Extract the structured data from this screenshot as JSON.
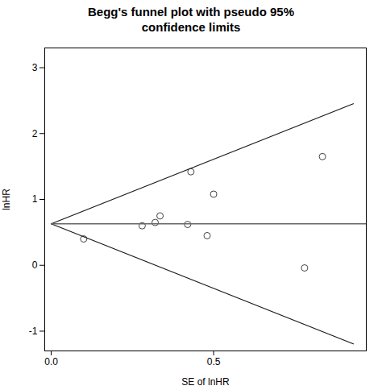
{
  "chart_data": {
    "type": "scatter",
    "title": "Begg's funnel plot with pseudo 95%\nconfidence limits",
    "x_label": "SE of lnHR",
    "y_label": "lnHR",
    "xlim": [
      -0.02,
      0.97
    ],
    "ylim": [
      -1.3,
      3.3
    ],
    "xticks": [
      {
        "value": 0,
        "label": "0.0"
      },
      0.5
    ],
    "yticks": [
      -1,
      0,
      1,
      2,
      3
    ],
    "grid": false,
    "series": [
      {
        "type": "scatter",
        "marker": "hollow",
        "color": "#444444",
        "x": [
          0.1,
          0.28,
          0.32,
          0.335,
          0.42,
          0.43,
          0.5,
          0.48,
          0.78,
          0.835
        ],
        "values": [
          0.4,
          0.6,
          0.65,
          0.75,
          0.62,
          1.42,
          1.08,
          0.45,
          -0.04,
          1.65
        ]
      },
      {
        "type": "line",
        "color": "#1a1a1a",
        "x": [
          0,
          0.93
        ],
        "values": [
          0.63,
          2.4528
        ]
      },
      {
        "type": "line",
        "color": "#1a1a1a",
        "x": [
          0,
          0.93
        ],
        "values": [
          0.63,
          -1.1928
        ]
      },
      {
        "type": "line",
        "color": "#666666",
        "x": [
          0,
          0.97
        ],
        "values": [
          0.63,
          0.63
        ]
      }
    ]
  }
}
